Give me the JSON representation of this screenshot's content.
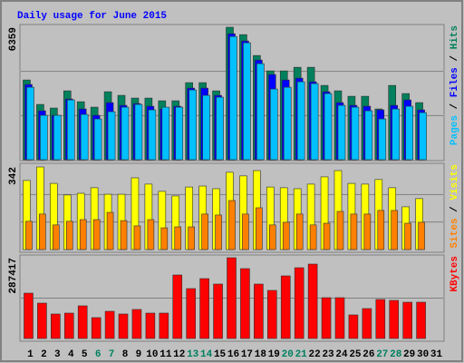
{
  "chart_data": {
    "type": "bar",
    "title": "Daily usage for June 2015",
    "categories": [
      "1",
      "2",
      "3",
      "4",
      "5",
      "6",
      "7",
      "8",
      "9",
      "10",
      "11",
      "12",
      "13",
      "14",
      "15",
      "16",
      "17",
      "18",
      "19",
      "20",
      "21",
      "22",
      "23",
      "24",
      "25",
      "26",
      "27",
      "28",
      "29",
      "30",
      "31"
    ],
    "highlight_indices": [
      5,
      6,
      12,
      13,
      19,
      20,
      26,
      27
    ],
    "highlight_color": "#008060",
    "label_color": "#000000",
    "legend_separator": " / ",
    "panels": [
      {
        "ylim": [
          0,
          6359
        ],
        "yticks": [
          6359
        ],
        "gridlines": [
          2120,
          4240
        ],
        "series": [
          {
            "name": "Hits",
            "color": "#00805c",
            "values": [
              3828,
              2654,
              2480,
              3306,
              2784,
              2523,
              3263,
              3089,
              2958,
              2958,
              2828,
              2828,
              3698,
              3698,
              3306,
              6359,
              6003,
              5003,
              4263,
              4263,
              4437,
              4437,
              3567,
              3306,
              3045,
              3045,
              2436,
              3567,
              3176,
              2741,
              null
            ]
          },
          {
            "name": "Files",
            "color": "#0000ff",
            "values": [
              3611,
              2349,
              2132,
              2915,
              2436,
              2132,
              2741,
              2610,
              2697,
              2567,
              2436,
              2567,
              3437,
              3437,
              3089,
              6047,
              5699,
              4785,
              4089,
              3828,
              3915,
              3741,
              3263,
              2741,
              2610,
              2567,
              2393,
              2610,
              2871,
              2393,
              null
            ]
          },
          {
            "name": "Pages",
            "color": "#00c0ff",
            "values": [
              3480,
              2132,
              2132,
              2871,
              2175,
              1958,
              2306,
              2523,
              2654,
              2393,
              2523,
              2523,
              3350,
              3089,
              3002,
              5916,
              5612,
              4611,
              3393,
              3480,
              3741,
              3654,
              3176,
              2610,
              2523,
              2349,
              1958,
              2436,
              2567,
              2262,
              null
            ]
          }
        ]
      },
      {
        "ylim": [
          0,
          342
        ],
        "yticks": [
          342
        ],
        "gridlines": [
          114,
          228
        ],
        "series": [
          {
            "name": "Visits",
            "color": "#ffff00",
            "values": [
              286,
              342,
              274,
              226,
              233,
              256,
              229,
              229,
              297,
              271,
              241,
              222,
              259,
              263,
              252,
              320,
              305,
              327,
              259,
              256,
              252,
              271,
              301,
              327,
              274,
              271,
              290,
              256,
              177,
              211,
              null
            ]
          },
          {
            "name": "Sites",
            "color": "#ff8000",
            "values": [
              117,
              147,
              102,
              117,
              124,
              124,
              154,
              120,
              98,
              124,
              90,
              94,
              94,
              147,
              143,
              203,
              147,
              173,
              102,
              113,
              147,
              102,
              109,
              158,
              147,
              147,
              162,
              162,
              109,
              113,
              null
            ]
          }
        ]
      },
      {
        "ylim": [
          0,
          287417
        ],
        "yticks": [
          287417
        ],
        "gridlines": [
          143700
        ],
        "series": [
          {
            "name": "KBytes",
            "color": "#ff0000",
            "values": [
              161450,
              125931,
              87183,
              90412,
              116244,
              74267,
              96870,
              87183,
              103328,
              90412,
              90412,
              226030,
              177595,
              213114,
              193740,
              287417,
              248633,
              193740,
              171137,
              222801,
              251862,
              264778,
              145305,
              145305,
              83954,
              106557,
              138847,
              135618,
              129160,
              129160,
              null
            ]
          }
        ]
      }
    ]
  }
}
